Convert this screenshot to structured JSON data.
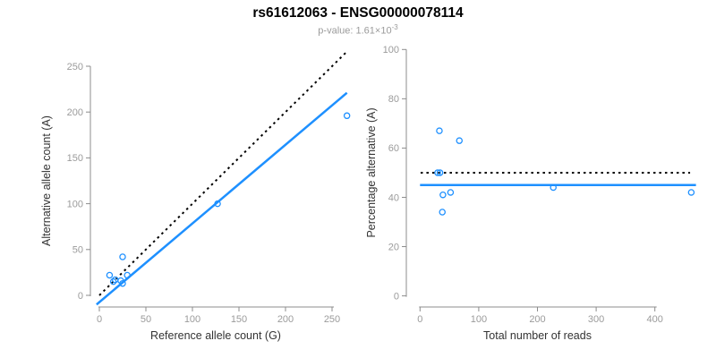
{
  "header": {
    "title": "rs61612063 - ENSG00000078114",
    "subtitle_prefix": "p-value: 1.61×10",
    "subtitle_exponent": "-3"
  },
  "colors": {
    "points": "#1E90FF",
    "fit_line": "#1E90FF",
    "identity_line": "#000000",
    "axis": "#8c8c8c",
    "tick_label": "#9b9b9b",
    "axis_title": "#333333",
    "subtitle": "#9b9b9b",
    "title": "#000000"
  },
  "chart_data": [
    {
      "type": "scatter",
      "panel": "left",
      "xlabel": "Reference allele count (G)",
      "ylabel": "Alternative allele count (A)",
      "xticks": [
        0,
        50,
        100,
        150,
        200,
        250
      ],
      "yticks": [
        0,
        50,
        100,
        150,
        200,
        250
      ],
      "xlim": [
        0,
        267
      ],
      "ylim": [
        0,
        267
      ],
      "grid": false,
      "points": [
        [
          11,
          22
        ],
        [
          25,
          42
        ],
        [
          15,
          15
        ],
        [
          17,
          17
        ],
        [
          23,
          16
        ],
        [
          30,
          22
        ],
        [
          25,
          13
        ],
        [
          127,
          100
        ],
        [
          266,
          196
        ]
      ],
      "lines": [
        {
          "name": "identity-line",
          "style": "dotted",
          "role": "identity",
          "x1": 0,
          "y1": 0,
          "x2": 267,
          "y2": 267
        },
        {
          "name": "fit-line",
          "style": "solid",
          "role": "regression",
          "x1": -3,
          "y1": -10,
          "x2": 266,
          "y2": 221
        }
      ]
    },
    {
      "type": "scatter",
      "panel": "right",
      "xlabel": "Total number of reads",
      "ylabel": "Percentage alternative (A)",
      "xticks": [
        0,
        100,
        200,
        300,
        400
      ],
      "yticks": [
        0,
        20,
        40,
        60,
        80,
        100
      ],
      "xlim": [
        0,
        470
      ],
      "ylim": [
        0,
        100
      ],
      "grid": false,
      "points": [
        [
          33,
          67
        ],
        [
          67,
          63
        ],
        [
          30,
          50
        ],
        [
          34,
          50
        ],
        [
          39,
          41
        ],
        [
          52,
          42
        ],
        [
          38,
          34
        ],
        [
          227,
          44
        ],
        [
          462,
          42
        ]
      ],
      "lines": [
        {
          "name": "expected-line",
          "style": "dotted",
          "role": "expected-50pct",
          "x1": 1,
          "y1": 50,
          "x2": 460,
          "y2": 50
        },
        {
          "name": "mean-line",
          "style": "solid",
          "role": "mean-pct",
          "x1": 0,
          "y1": 45,
          "x2": 470,
          "y2": 45
        }
      ]
    }
  ]
}
